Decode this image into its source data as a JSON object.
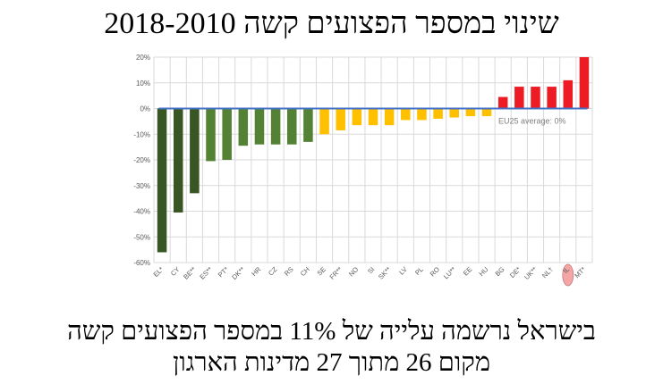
{
  "chart_data": {
    "type": "bar",
    "title": "שינוי במספר הפצועים קשה 2018-2010",
    "categories": [
      "EL*",
      "CY",
      "BE**",
      "ES**",
      "PT*",
      "DK**",
      "HR",
      "CZ",
      "RS",
      "CH",
      "SE",
      "FR**",
      "NO",
      "SI",
      "SK**",
      "LV",
      "PL",
      "RO",
      "LU**",
      "EE",
      "HU",
      "BG",
      "DE*",
      "UK**",
      "NL†",
      "IL",
      "MT*"
    ],
    "values": [
      -56,
      -40.5,
      -33,
      -20.5,
      -20,
      -14.5,
      -14,
      -14,
      -14,
      -13,
      -10,
      -8.5,
      -6.5,
      -6.5,
      -6.5,
      -4.5,
      -4.5,
      -4,
      -3.5,
      -3,
      -3,
      4.5,
      8.5,
      8.5,
      8.5,
      11,
      20
    ],
    "bar_colors": [
      "#375623",
      "#375623",
      "#375623",
      "#548235",
      "#548235",
      "#548235",
      "#548235",
      "#548235",
      "#548235",
      "#548235",
      "#FFC000",
      "#FFC000",
      "#FFC000",
      "#FFC000",
      "#FFC000",
      "#FFC000",
      "#FFC000",
      "#FFC000",
      "#FFC000",
      "#FFC000",
      "#FFC000",
      "#ED1C24",
      "#ED1C24",
      "#ED1C24",
      "#ED1C24",
      "#ED1C24",
      "#ED1C24"
    ],
    "ylim": [
      -60,
      20
    ],
    "yticks": [
      "20%",
      "10%",
      "0%",
      "-10%",
      "-20%",
      "-30%",
      "-40%",
      "-50%",
      "-60%"
    ],
    "ytick_values": [
      20,
      10,
      0,
      -10,
      -20,
      -30,
      -40,
      -50,
      -60
    ],
    "grid": true,
    "reference_line": {
      "value": 0,
      "label": "EU25 average: 0%",
      "color": "#4472C4"
    },
    "highlighted_category": "IL",
    "highlight_color": "#F4A6A6"
  },
  "footer": {
    "line1": "בישראל נרשמה עלייה של 11% במספר הפצועים קשה",
    "line2": "מקום 26 מתוך 27 מדינות הארגון"
  }
}
